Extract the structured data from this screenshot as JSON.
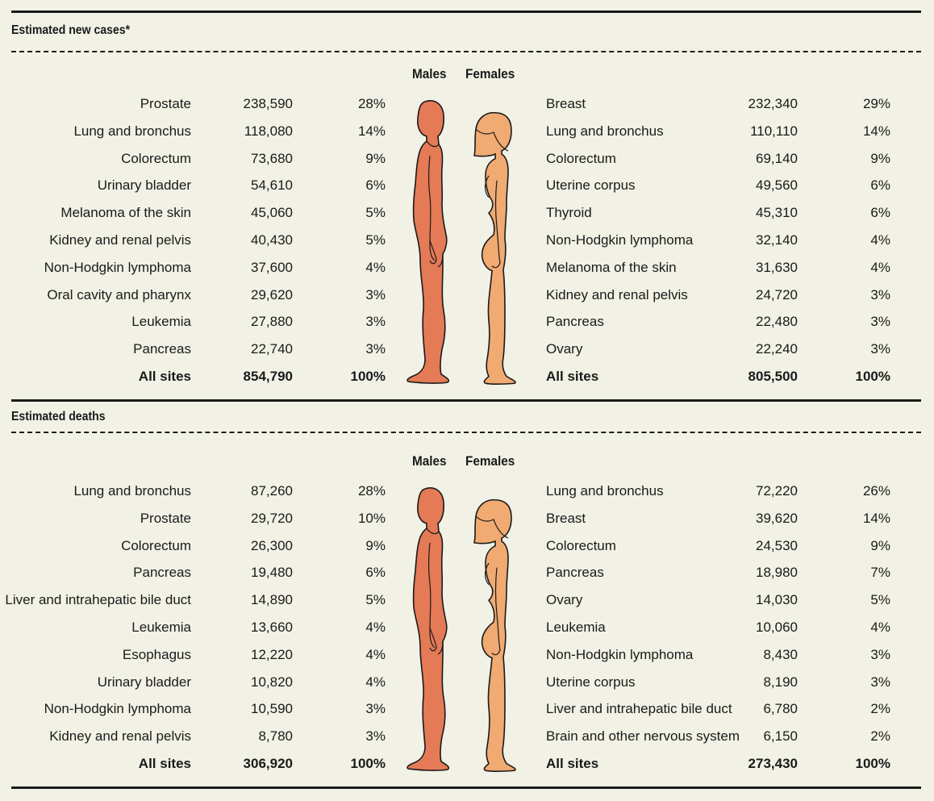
{
  "colors": {
    "male": "#e57a56",
    "female": "#f0aa72",
    "background": "#f2f1e6",
    "ink": "#1a1a1a"
  },
  "labels": {
    "males": "Males",
    "females": "Females"
  },
  "new_cases": {
    "title": "Estimated new cases*",
    "males": [
      {
        "site": "Prostate",
        "count": "238,590",
        "pct": "28%"
      },
      {
        "site": "Lung and bronchus",
        "count": "118,080",
        "pct": "14%"
      },
      {
        "site": "Colorectum",
        "count": "73,680",
        "pct": "9%"
      },
      {
        "site": "Urinary bladder",
        "count": "54,610",
        "pct": "6%"
      },
      {
        "site": "Melanoma of the skin",
        "count": "45,060",
        "pct": "5%"
      },
      {
        "site": "Kidney and renal pelvis",
        "count": "40,430",
        "pct": "5%"
      },
      {
        "site": "Non-Hodgkin lymphoma",
        "count": "37,600",
        "pct": "4%"
      },
      {
        "site": "Oral cavity and pharynx",
        "count": "29,620",
        "pct": "3%"
      },
      {
        "site": "Leukemia",
        "count": "27,880",
        "pct": "3%"
      },
      {
        "site": "Pancreas",
        "count": "22,740",
        "pct": "3%"
      },
      {
        "site": "All sites",
        "count": "854,790",
        "pct": "100%"
      }
    ],
    "females": [
      {
        "site": "Breast",
        "count": "232,340",
        "pct": "29%"
      },
      {
        "site": "Lung and bronchus",
        "count": "110,110",
        "pct": "14%"
      },
      {
        "site": "Colorectum",
        "count": "69,140",
        "pct": "9%"
      },
      {
        "site": "Uterine corpus",
        "count": "49,560",
        "pct": "6%"
      },
      {
        "site": "Thyroid",
        "count": "45,310",
        "pct": "6%"
      },
      {
        "site": "Non-Hodgkin lymphoma",
        "count": "32,140",
        "pct": "4%"
      },
      {
        "site": "Melanoma of the skin",
        "count": "31,630",
        "pct": "4%"
      },
      {
        "site": "Kidney and renal pelvis",
        "count": "24,720",
        "pct": "3%"
      },
      {
        "site": "Pancreas",
        "count": "22,480",
        "pct": "3%"
      },
      {
        "site": "Ovary",
        "count": "22,240",
        "pct": "3%"
      },
      {
        "site": "All sites",
        "count": "805,500",
        "pct": "100%"
      }
    ]
  },
  "deaths": {
    "title": "Estimated deaths",
    "males": [
      {
        "site": "Lung and bronchus",
        "count": "87,260",
        "pct": "28%"
      },
      {
        "site": "Prostate",
        "count": "29,720",
        "pct": "10%"
      },
      {
        "site": "Colorectum",
        "count": "26,300",
        "pct": "9%"
      },
      {
        "site": "Pancreas",
        "count": "19,480",
        "pct": "6%"
      },
      {
        "site": "Liver and intrahepatic bile duct",
        "count": "14,890",
        "pct": "5%"
      },
      {
        "site": "Leukemia",
        "count": "13,660",
        "pct": "4%"
      },
      {
        "site": "Esophagus",
        "count": "12,220",
        "pct": "4%"
      },
      {
        "site": "Urinary bladder",
        "count": "10,820",
        "pct": "4%"
      },
      {
        "site": "Non-Hodgkin lymphoma",
        "count": "10,590",
        "pct": "3%"
      },
      {
        "site": "Kidney and renal pelvis",
        "count": "8,780",
        "pct": "3%"
      },
      {
        "site": "All sites",
        "count": "306,920",
        "pct": "100%"
      }
    ],
    "females": [
      {
        "site": "Lung and bronchus",
        "count": "72,220",
        "pct": "26%"
      },
      {
        "site": "Breast",
        "count": "39,620",
        "pct": "14%"
      },
      {
        "site": "Colorectum",
        "count": "24,530",
        "pct": "9%"
      },
      {
        "site": "Pancreas",
        "count": "18,980",
        "pct": "7%"
      },
      {
        "site": "Ovary",
        "count": "14,030",
        "pct": "5%"
      },
      {
        "site": "Leukemia",
        "count": "10,060",
        "pct": "4%"
      },
      {
        "site": "Non-Hodgkin lymphoma",
        "count": "8,430",
        "pct": "3%"
      },
      {
        "site": "Uterine corpus",
        "count": "8,190",
        "pct": "3%"
      },
      {
        "site": "Liver and intrahepatic bile duct",
        "count": "6,780",
        "pct": "2%"
      },
      {
        "site": "Brain and other nervous system",
        "count": "6,150",
        "pct": "2%"
      },
      {
        "site": "All sites",
        "count": "273,430",
        "pct": "100%"
      }
    ]
  }
}
